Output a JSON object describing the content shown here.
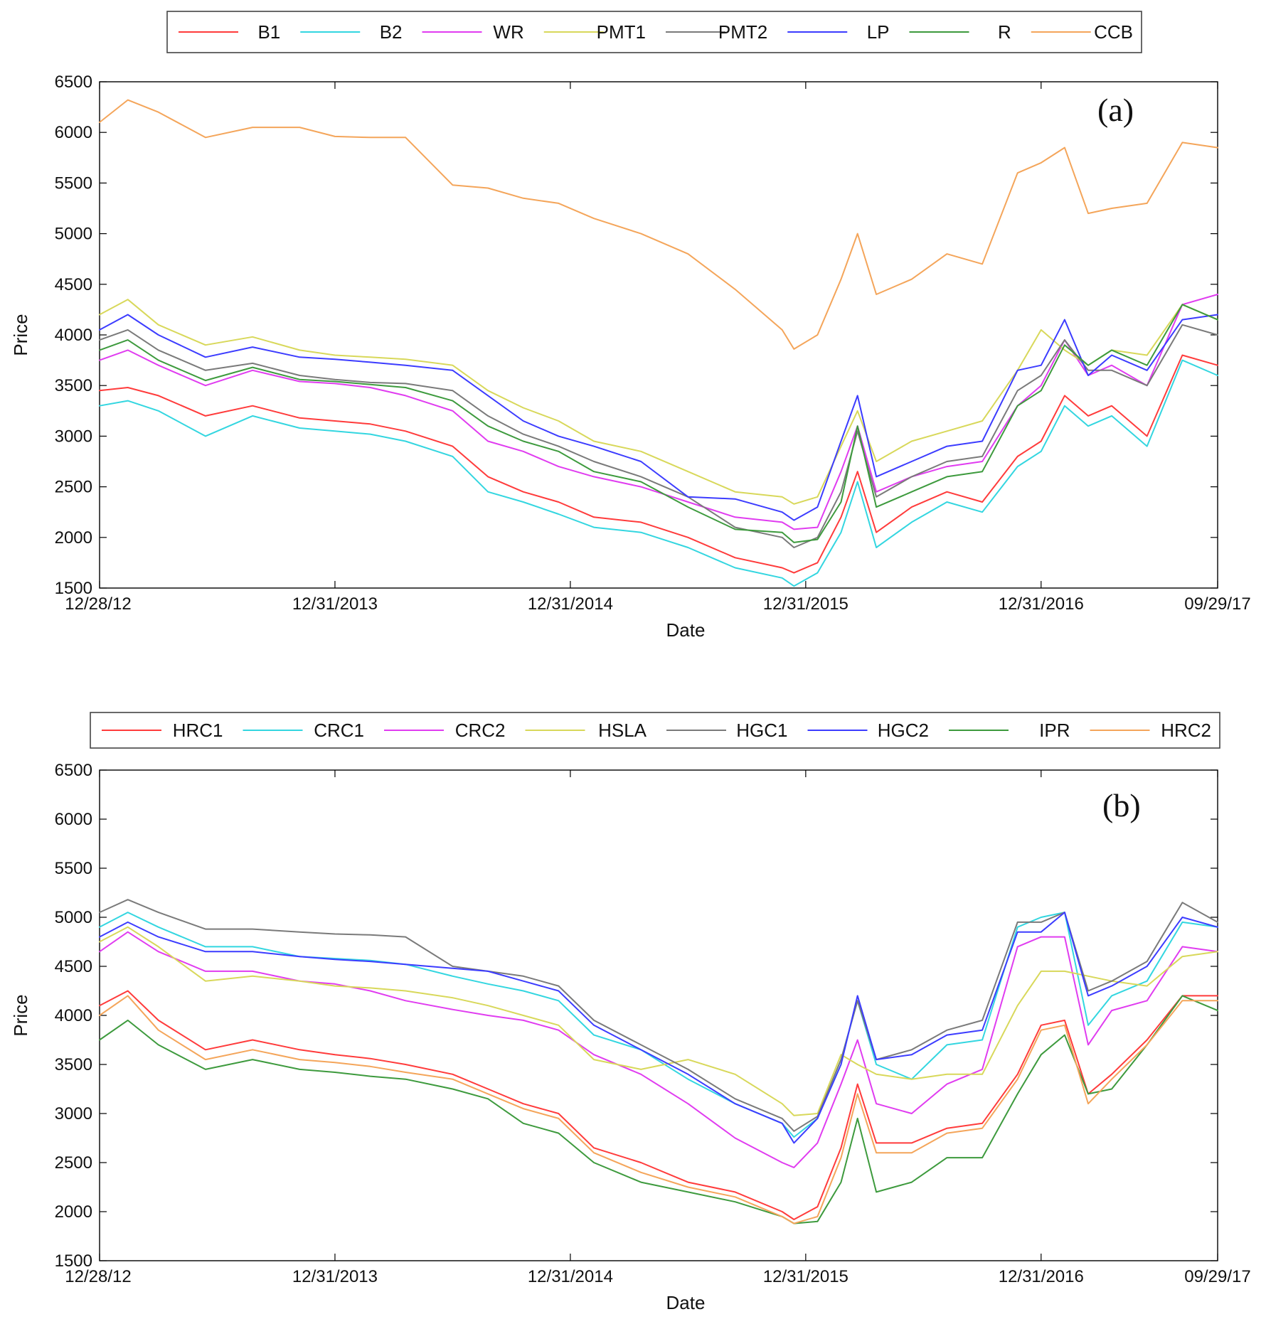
{
  "chart_data": [
    {
      "type": "line",
      "panel_label": "(a)",
      "xlabel": "Date",
      "ylabel": "Price",
      "ylim": [
        1500,
        6500
      ],
      "yticks": [
        1500,
        2000,
        2500,
        3000,
        3500,
        4000,
        4500,
        5000,
        5500,
        6000,
        6500
      ],
      "xlim": [
        0,
        4.75
      ],
      "xtick_positions": [
        0,
        1,
        2,
        3,
        4,
        4.75
      ],
      "xtick_labels": [
        "12/28/12",
        "12/31/2013",
        "12/31/2014",
        "12/31/2015",
        "12/31/2016",
        "09/29/17"
      ],
      "legend_position": "top",
      "x": [
        0,
        0.12,
        0.25,
        0.45,
        0.65,
        0.85,
        1.0,
        1.15,
        1.3,
        1.5,
        1.65,
        1.8,
        1.95,
        2.1,
        2.3,
        2.5,
        2.7,
        2.9,
        2.95,
        3.05,
        3.15,
        3.22,
        3.3,
        3.45,
        3.6,
        3.75,
        3.9,
        4.0,
        4.1,
        4.2,
        4.3,
        4.45,
        4.6,
        4.75
      ],
      "series": [
        {
          "name": "B1",
          "color": "#ff3b3b",
          "values": [
            3450,
            3480,
            3400,
            3200,
            3300,
            3180,
            3150,
            3120,
            3050,
            2900,
            2600,
            2450,
            2350,
            2200,
            2150,
            2000,
            1800,
            1700,
            1650,
            1750,
            2200,
            2650,
            2050,
            2300,
            2450,
            2350,
            2800,
            2950,
            3400,
            3200,
            3300,
            3000,
            3800,
            3700
          ]
        },
        {
          "name": "B2",
          "color": "#33d6e0",
          "values": [
            3300,
            3350,
            3250,
            3000,
            3200,
            3080,
            3050,
            3020,
            2950,
            2800,
            2450,
            2350,
            2230,
            2100,
            2050,
            1900,
            1700,
            1600,
            1520,
            1650,
            2050,
            2550,
            1900,
            2150,
            2350,
            2250,
            2700,
            2850,
            3300,
            3100,
            3200,
            2900,
            3750,
            3600
          ]
        },
        {
          "name": "WR",
          "color": "#e03cf0",
          "values": [
            3750,
            3850,
            3700,
            3500,
            3650,
            3540,
            3520,
            3480,
            3400,
            3250,
            2950,
            2850,
            2700,
            2600,
            2500,
            2350,
            2200,
            2150,
            2080,
            2100,
            2650,
            3100,
            2450,
            2600,
            2700,
            2750,
            3300,
            3500,
            3950,
            3600,
            3700,
            3500,
            4300,
            4400
          ]
        },
        {
          "name": "PMT1",
          "color": "#d8d85a",
          "values": [
            4200,
            4350,
            4100,
            3900,
            3980,
            3850,
            3800,
            3780,
            3760,
            3700,
            3450,
            3280,
            3150,
            2950,
            2850,
            2650,
            2450,
            2400,
            2330,
            2400,
            2900,
            3250,
            2750,
            2950,
            3050,
            3150,
            3650,
            4050,
            3850,
            3700,
            3850,
            3800,
            4300,
            4150
          ]
        },
        {
          "name": "PMT2",
          "color": "#7a7a7a",
          "values": [
            3950,
            4050,
            3850,
            3650,
            3720,
            3600,
            3560,
            3530,
            3520,
            3450,
            3200,
            3020,
            2900,
            2750,
            2600,
            2400,
            2100,
            2000,
            1900,
            2000,
            2450,
            3050,
            2400,
            2600,
            2750,
            2800,
            3450,
            3600,
            3950,
            3650,
            3650,
            3500,
            4100,
            4000
          ]
        },
        {
          "name": "LP",
          "color": "#3c3cff",
          "values": [
            4050,
            4200,
            4000,
            3780,
            3880,
            3780,
            3760,
            3730,
            3700,
            3650,
            3400,
            3150,
            3000,
            2900,
            2750,
            2400,
            2380,
            2250,
            2170,
            2300,
            2950,
            3400,
            2600,
            2750,
            2900,
            2950,
            3650,
            3700,
            4150,
            3600,
            3800,
            3650,
            4150,
            4200
          ]
        },
        {
          "name": "R",
          "color": "#3d9a3d",
          "values": [
            3850,
            3950,
            3750,
            3550,
            3680,
            3560,
            3540,
            3510,
            3480,
            3350,
            3100,
            2950,
            2850,
            2650,
            2550,
            2300,
            2080,
            2050,
            1950,
            1980,
            2350,
            3100,
            2300,
            2450,
            2600,
            2650,
            3300,
            3450,
            3900,
            3700,
            3850,
            3700,
            4300,
            4150
          ]
        },
        {
          "name": "CCB",
          "color": "#f4a55a",
          "values": [
            6100,
            6320,
            6200,
            5950,
            6050,
            6050,
            5960,
            5950,
            5950,
            5480,
            5450,
            5350,
            5300,
            5150,
            5000,
            4800,
            4450,
            4050,
            3860,
            4000,
            4550,
            5000,
            4400,
            4550,
            4800,
            4700,
            5600,
            5700,
            5850,
            5200,
            5250,
            5300,
            5900,
            5850
          ]
        }
      ]
    },
    {
      "type": "line",
      "panel_label": "(b)",
      "xlabel": "Date",
      "ylabel": "Price",
      "ylim": [
        1500,
        6500
      ],
      "yticks": [
        1500,
        2000,
        2500,
        3000,
        3500,
        4000,
        4500,
        5000,
        5500,
        6000,
        6500
      ],
      "xlim": [
        0,
        4.75
      ],
      "xtick_positions": [
        0,
        1,
        2,
        3,
        4,
        4.75
      ],
      "xtick_labels": [
        "12/28/12",
        "12/31/2013",
        "12/31/2014",
        "12/31/2015",
        "12/31/2016",
        "09/29/17"
      ],
      "legend_position": "top",
      "x": [
        0,
        0.12,
        0.25,
        0.45,
        0.65,
        0.85,
        1.0,
        1.15,
        1.3,
        1.5,
        1.65,
        1.8,
        1.95,
        2.1,
        2.3,
        2.5,
        2.7,
        2.9,
        2.95,
        3.05,
        3.15,
        3.22,
        3.3,
        3.45,
        3.6,
        3.75,
        3.9,
        4.0,
        4.1,
        4.2,
        4.3,
        4.45,
        4.6,
        4.75
      ],
      "series": [
        {
          "name": "HRC1",
          "color": "#ff3b3b",
          "values": [
            4100,
            4250,
            3950,
            3650,
            3750,
            3650,
            3600,
            3560,
            3500,
            3400,
            3250,
            3100,
            3000,
            2650,
            2500,
            2300,
            2200,
            2000,
            1920,
            2050,
            2650,
            3300,
            2700,
            2700,
            2850,
            2900,
            3400,
            3900,
            3950,
            3200,
            3400,
            3750,
            4200,
            4200
          ]
        },
        {
          "name": "CRC1",
          "color": "#33d6e0",
          "values": [
            4900,
            5050,
            4900,
            4700,
            4700,
            4600,
            4580,
            4560,
            4520,
            4400,
            4320,
            4250,
            4150,
            3800,
            3650,
            3350,
            3100,
            2900,
            2760,
            2950,
            3550,
            4150,
            3500,
            3350,
            3700,
            3750,
            4900,
            5000,
            5050,
            3900,
            4200,
            4350,
            4950,
            4900
          ]
        },
        {
          "name": "CRC2",
          "color": "#e03cf0",
          "values": [
            4650,
            4850,
            4650,
            4450,
            4450,
            4350,
            4320,
            4250,
            4150,
            4060,
            4000,
            3950,
            3850,
            3600,
            3400,
            3100,
            2750,
            2500,
            2450,
            2700,
            3300,
            3750,
            3100,
            3000,
            3300,
            3450,
            4700,
            4800,
            4800,
            3700,
            4050,
            4150,
            4700,
            4650
          ]
        },
        {
          "name": "HSLA",
          "color": "#d8d85a",
          "values": [
            4750,
            4900,
            4700,
            4350,
            4400,
            4350,
            4300,
            4280,
            4250,
            4180,
            4100,
            4000,
            3900,
            3550,
            3450,
            3550,
            3400,
            3100,
            2980,
            3000,
            3600,
            3500,
            3400,
            3350,
            3400,
            3400,
            4100,
            4450,
            4450,
            4400,
            4350,
            4300,
            4600,
            4650
          ]
        },
        {
          "name": "HGC1",
          "color": "#7a7a7a",
          "values": [
            5050,
            5180,
            5050,
            4880,
            4880,
            4850,
            4830,
            4820,
            4800,
            4500,
            4450,
            4400,
            4300,
            3950,
            3700,
            3450,
            3150,
            2950,
            2820,
            2970,
            3550,
            4150,
            3550,
            3650,
            3850,
            3950,
            4950,
            4950,
            5050,
            4250,
            4350,
            4550,
            5150,
            4950
          ]
        },
        {
          "name": "HGC2",
          "color": "#3c3cff",
          "values": [
            4800,
            4950,
            4800,
            4650,
            4650,
            4600,
            4570,
            4550,
            4520,
            4480,
            4450,
            4350,
            4250,
            3900,
            3650,
            3400,
            3100,
            2900,
            2700,
            2950,
            3500,
            4200,
            3550,
            3600,
            3800,
            3850,
            4850,
            4850,
            5050,
            4200,
            4300,
            4500,
            5000,
            4900
          ]
        },
        {
          "name": "IPR",
          "color": "#3d9a3d",
          "values": [
            3750,
            3950,
            3700,
            3450,
            3550,
            3450,
            3420,
            3380,
            3350,
            3250,
            3150,
            2900,
            2800,
            2500,
            2300,
            2200,
            2100,
            1950,
            1880,
            1900,
            2300,
            2950,
            2200,
            2300,
            2550,
            2550,
            3200,
            3600,
            3800,
            3200,
            3250,
            3700,
            4200,
            4050
          ]
        },
        {
          "name": "HRC2",
          "color": "#f4a55a",
          "values": [
            4000,
            4200,
            3850,
            3550,
            3650,
            3550,
            3520,
            3480,
            3420,
            3350,
            3200,
            3050,
            2950,
            2600,
            2400,
            2250,
            2150,
            1950,
            1880,
            1950,
            2550,
            3200,
            2600,
            2600,
            2800,
            2850,
            3350,
            3850,
            3900,
            3100,
            3350,
            3700,
            4150,
            4150
          ]
        }
      ]
    }
  ]
}
